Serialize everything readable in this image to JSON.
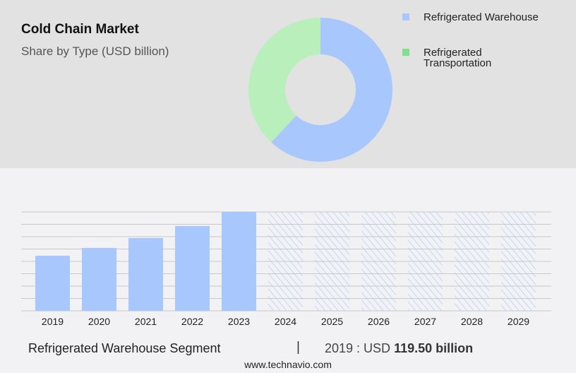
{
  "header": {
    "title": "Cold Chain Market",
    "subtitle": "Share by Type (USD billion)"
  },
  "colors": {
    "warehouse": "#a8c8fd",
    "transportation": "#b8efbb",
    "transportation_legend": "#7ee08a",
    "grid": "#c8c8c8"
  },
  "chart_data": [
    {
      "type": "pie",
      "donut": true,
      "slices": [
        {
          "name": "Refrigerated Warehouse",
          "share": 62
        },
        {
          "name": "Refrigerated Transportation",
          "share": 38
        }
      ],
      "legend_placement": "top-right"
    },
    {
      "type": "bar",
      "categories": [
        "2019",
        "2020",
        "2021",
        "2022",
        "2023",
        "2024",
        "2025",
        "2026",
        "2027",
        "2028",
        "2029"
      ],
      "values": [
        119.5,
        136.4,
        157.9,
        183.9,
        214.5,
        null,
        null,
        null,
        null,
        null,
        null
      ],
      "forecast_hatched": [
        "2024",
        "2025",
        "2026",
        "2027",
        "2028",
        "2029"
      ],
      "ylim": [
        0,
        214.5
      ],
      "grid": true,
      "gridlines": 8
    }
  ],
  "legend": {
    "items": [
      "Refrigerated Warehouse",
      "Refrigerated\nTransportation"
    ]
  },
  "footer": {
    "segment": "Refrigerated Warehouse Segment",
    "separator": "|",
    "year_label": "2019 : USD ",
    "value": "119.50 billion",
    "site": "www.technavio.com"
  }
}
